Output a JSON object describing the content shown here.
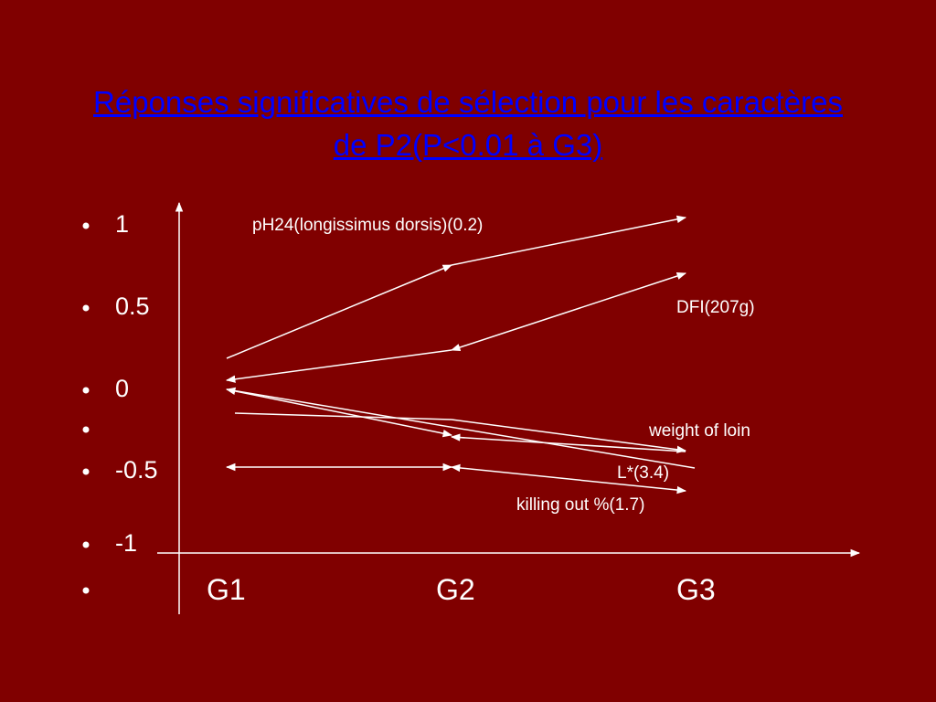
{
  "title": "Réponses significatives de sélection pour les caractères de P2(P<0.01 à G3)",
  "y_labels": [
    "1",
    "0.5",
    "0",
    "-0.5",
    "-1"
  ],
  "x_labels": [
    "G1",
    "G2",
    "G3"
  ],
  "traits": [
    "pH24(longissimus dorsis)(0.2)",
    "DFI(207g)",
    "weight of loin",
    "L*(3.4)",
    "killing out %(1.7)"
  ]
}
